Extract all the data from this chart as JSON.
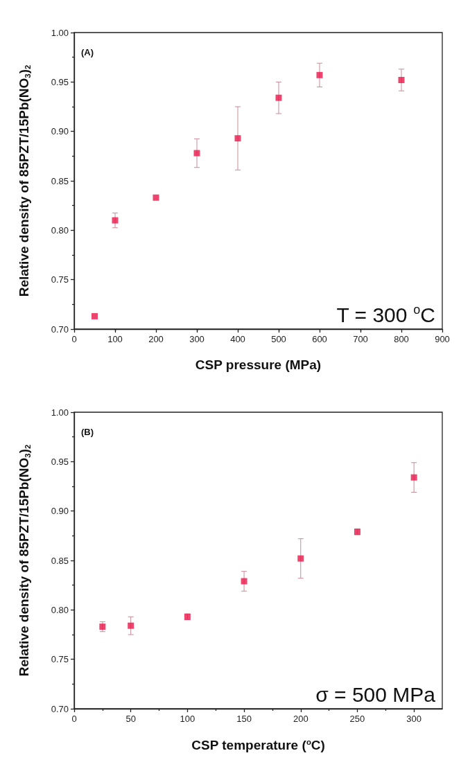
{
  "chart_data": [
    {
      "type": "scatter",
      "xlabel": "CSP pressure (MPa)",
      "ylabel": "Relative density of 85PZT/15Pb(NO$_{3}$)$_{2}$",
      "annotations": [
        "(A)",
        "T = 300 $^{o}$C"
      ],
      "x": [
        50,
        100,
        200,
        300,
        400,
        500,
        600,
        800
      ],
      "values": [
        0.713,
        0.81,
        0.833,
        0.878,
        0.893,
        0.934,
        0.957,
        0.952
      ],
      "errors": [
        null,
        0.0075,
        null,
        0.0145,
        0.032,
        0.016,
        0.012,
        0.011
      ],
      "color": "#e8174a",
      "marker": "square",
      "xlim": [
        0,
        900
      ],
      "xticks": [
        0,
        100,
        200,
        300,
        400,
        500,
        600,
        700,
        800,
        900
      ],
      "ylim": [
        0.7,
        1.0
      ],
      "yticks": [
        {
          "value": 0.7,
          "label": "0.70"
        },
        0.75,
        {
          "value": 0.8,
          "label": "0.80"
        },
        0.85,
        {
          "value": 0.9,
          "label": "0.90"
        },
        0.95,
        {
          "value": 1.0,
          "label": "1.00"
        }
      ],
      "grid": false
    },
    {
      "type": "scatter",
      "xlabel": "CSP temperature ($^{o}$C)",
      "ylabel": "Relative density of 85PZT/15Pb(NO$_{3}$)$_{2}$",
      "annotations": [
        "(B)",
        "σ = 500 MPa"
      ],
      "x": [
        25,
        50,
        100,
        150,
        200,
        250,
        300
      ],
      "values": [
        0.783,
        0.784,
        0.793,
        0.829,
        0.852,
        0.879,
        0.934
      ],
      "errors": [
        0.005,
        0.009,
        0.003,
        0.01,
        0.02,
        0.003,
        0.015
      ],
      "color": "#e8174a",
      "marker": "square",
      "xlim": [
        0,
        325
      ],
      "xticks": [
        0,
        50,
        100,
        150,
        200,
        250,
        300
      ],
      "ylim": [
        0.7,
        1.0
      ],
      "yticks": [
        {
          "value": 0.7,
          "label": "0.70"
        },
        0.75,
        {
          "value": 0.8,
          "label": "0.80"
        },
        0.85,
        {
          "value": 0.9,
          "label": "0.90"
        },
        0.95,
        {
          "value": 1.0,
          "label": "1.00"
        }
      ],
      "grid": false
    }
  ]
}
